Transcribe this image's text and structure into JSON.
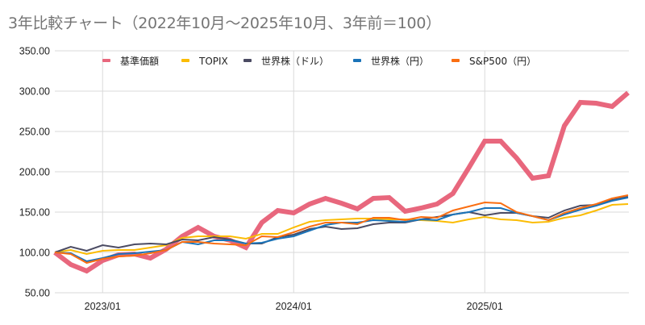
{
  "chart_data": {
    "type": "line",
    "title": "3年比較チャート（2022年10月～2025年10月、3年前＝100）",
    "xlabel": "",
    "ylabel": "",
    "ylim": [
      50,
      350
    ],
    "yticks": [
      "50.00",
      "100.00",
      "150.00",
      "200.00",
      "250.00",
      "300.00",
      "350.00"
    ],
    "ytick_values": [
      50,
      100,
      150,
      200,
      250,
      300,
      350
    ],
    "xtick_labels": [
      {
        "label": "2023/01",
        "index": 3
      },
      {
        "label": "2024/01",
        "index": 15
      },
      {
        "label": "2025/01",
        "index": 27
      }
    ],
    "x": [
      "2022/10",
      "2022/11",
      "2022/12",
      "2023/01",
      "2023/02",
      "2023/03",
      "2023/04",
      "2023/05",
      "2023/06",
      "2023/07",
      "2023/08",
      "2023/09",
      "2023/10",
      "2023/11",
      "2023/12",
      "2024/01",
      "2024/02",
      "2024/03",
      "2024/04",
      "2024/05",
      "2024/06",
      "2024/07",
      "2024/08",
      "2024/09",
      "2024/10",
      "2024/11",
      "2024/12",
      "2025/01",
      "2025/02",
      "2025/03",
      "2025/04",
      "2025/05",
      "2025/06",
      "2025/07",
      "2025/08",
      "2025/09",
      "2025/10"
    ],
    "grid": "horizontal + vertical at year ticks",
    "legend_position": "top",
    "series": [
      {
        "name": "基準価額",
        "color": "#e8677d",
        "emphasis": "thick",
        "values": [
          100,
          85,
          77,
          90,
          97,
          98,
          93,
          104,
          120,
          131,
          120,
          115,
          106,
          137,
          152,
          149,
          160,
          167,
          161,
          154,
          167,
          168,
          151,
          155,
          160,
          173,
          205,
          238,
          238,
          217,
          192,
          195,
          257,
          286,
          285,
          281,
          298
        ]
      },
      {
        "name": "TOPIX",
        "color": "#fbbc04",
        "values": [
          100,
          103,
          98,
          102,
          103,
          103,
          106,
          109,
          118,
          120,
          120,
          120,
          117,
          123,
          123,
          131,
          138,
          140,
          141,
          142,
          142,
          141,
          141,
          140,
          139,
          137,
          141,
          144,
          141,
          140,
          137,
          138,
          143,
          146,
          152,
          159,
          160
        ]
      },
      {
        "name": "世界株（ドル）",
        "color": "#4b4b63",
        "values": [
          100,
          107,
          102,
          109,
          106,
          110,
          111,
          110,
          116,
          115,
          119,
          116,
          111,
          111,
          119,
          122,
          129,
          132,
          129,
          130,
          135,
          137,
          137,
          141,
          144,
          147,
          150,
          146,
          149,
          149,
          145,
          143,
          152,
          158,
          159,
          165,
          169
        ]
      },
      {
        "name": "世界株（円）",
        "color": "#1a73b8",
        "values": [
          100,
          99,
          89,
          93,
          98,
          99,
          101,
          103,
          113,
          110,
          115,
          115,
          111,
          112,
          117,
          120,
          127,
          134,
          137,
          137,
          140,
          139,
          138,
          141,
          140,
          147,
          150,
          155,
          155,
          149,
          145,
          140,
          147,
          153,
          158,
          164,
          168
        ]
      },
      {
        "name": "S&P500（円）",
        "color": "#fa6e11",
        "values": [
          100,
          98,
          87,
          92,
          95,
          96,
          99,
          103,
          113,
          113,
          111,
          110,
          109,
          120,
          119,
          125,
          132,
          137,
          137,
          135,
          143,
          143,
          140,
          144,
          143,
          152,
          157,
          162,
          161,
          150,
          145,
          140,
          149,
          155,
          160,
          167,
          171
        ]
      }
    ]
  }
}
